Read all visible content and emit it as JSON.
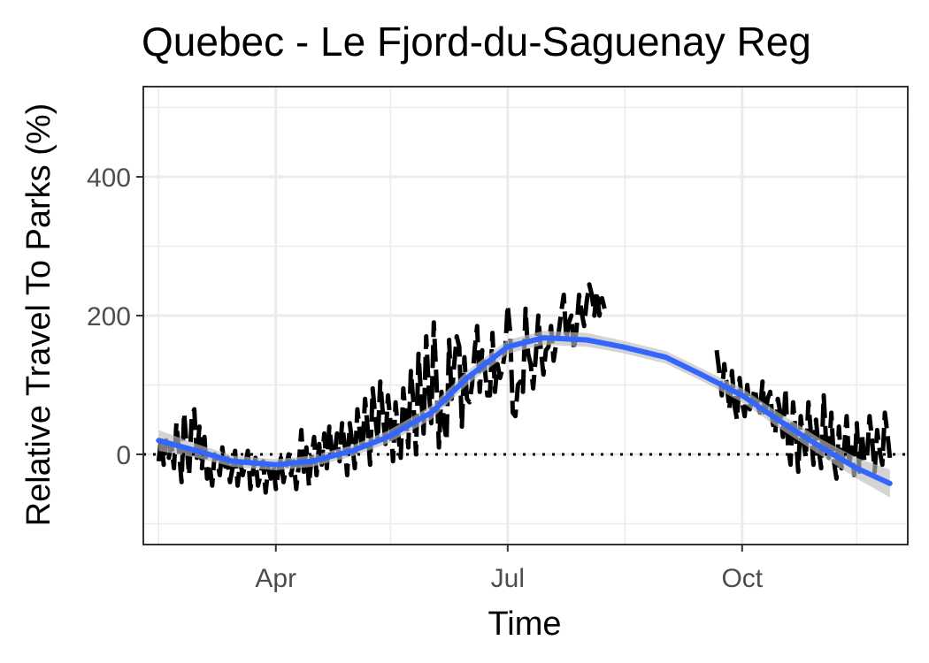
{
  "chart_data": {
    "type": "line",
    "title": "Quebec - Le Fjord-du-Saguenay Reg",
    "xlabel": "Time",
    "ylabel": "Relative Travel To Parks (%)",
    "x_ticks": [
      "Apr",
      "Jul",
      "Oct"
    ],
    "y_ticks": [
      0,
      200,
      400
    ],
    "ylim": [
      -130,
      530
    ],
    "xlim": [
      "2020-02-09",
      "2020-12-05"
    ],
    "grid": true,
    "reference_line": 0,
    "colors": {
      "observed": "#000000",
      "smooth": "#3366ff",
      "confidence_band": "#bdbdbd",
      "grid": "#ebebeb",
      "panel_border": "#333333"
    },
    "series": [
      {
        "type": "observed",
        "x": [
          "2020-02-15",
          "2020-02-16",
          "2020-02-17",
          "2020-02-18",
          "2020-02-19",
          "2020-02-20",
          "2020-02-21",
          "2020-02-22",
          "2020-02-23",
          "2020-02-24",
          "2020-02-25",
          "2020-02-26",
          "2020-02-27",
          "2020-02-28",
          "2020-02-29",
          "2020-03-01",
          "2020-03-02",
          "2020-03-03",
          "2020-03-04",
          "2020-03-05",
          "2020-03-06",
          "2020-03-07",
          "2020-03-08",
          "2020-03-09",
          "2020-03-10",
          "2020-03-11",
          "2020-03-12",
          "2020-03-13",
          "2020-03-14",
          "2020-03-15",
          "2020-03-16",
          "2020-03-17",
          "2020-03-18",
          "2020-03-19",
          "2020-03-20",
          "2020-03-21",
          "2020-03-22",
          "2020-03-23",
          "2020-03-24",
          "2020-03-25",
          "2020-03-26",
          "2020-03-27",
          "2020-03-28",
          "2020-03-29",
          "2020-03-30",
          "2020-03-31",
          "2020-04-01",
          "2020-04-02",
          "2020-04-03",
          "2020-04-04",
          "2020-04-05",
          "2020-04-06",
          "2020-04-07",
          "2020-04-08",
          "2020-04-09",
          "2020-04-10",
          "2020-04-11",
          "2020-04-12",
          "2020-04-13",
          "2020-04-14",
          "2020-04-15",
          "2020-04-16",
          "2020-04-17",
          "2020-04-18",
          "2020-04-19",
          "2020-04-20",
          "2020-04-21",
          "2020-04-22",
          "2020-04-23",
          "2020-04-24",
          "2020-04-25",
          "2020-04-26",
          "2020-04-27",
          "2020-04-28",
          "2020-04-29",
          "2020-04-30",
          "2020-05-01",
          "2020-05-02",
          "2020-05-03",
          "2020-05-04",
          "2020-05-05",
          "2020-05-06",
          "2020-05-07",
          "2020-05-08",
          "2020-05-09",
          "2020-05-10",
          "2020-05-11",
          "2020-05-12",
          "2020-05-13",
          "2020-05-14",
          "2020-05-15",
          "2020-05-16",
          "2020-05-17",
          "2020-05-18",
          "2020-05-19",
          "2020-05-20",
          "2020-05-21",
          "2020-05-22",
          "2020-05-23",
          "2020-05-24",
          "2020-05-25",
          "2020-05-26",
          "2020-05-27",
          "2020-05-28",
          "2020-05-29",
          "2020-05-30",
          "2020-05-31",
          "2020-06-01",
          "2020-06-02",
          "2020-06-03",
          "2020-06-04",
          "2020-06-05",
          "2020-06-06",
          "2020-06-07",
          "2020-06-08",
          "2020-06-09",
          "2020-06-10",
          "2020-06-11",
          "2020-06-12",
          "2020-06-13",
          "2020-06-14",
          "2020-06-15",
          "2020-06-16",
          "2020-06-17",
          "2020-06-18",
          "2020-06-19",
          "2020-06-20",
          "2020-06-21",
          "2020-06-22",
          "2020-06-23",
          "2020-06-24",
          "2020-06-25",
          "2020-06-26",
          "2020-06-27",
          "2020-06-28",
          "2020-06-29",
          "2020-06-30",
          "2020-07-01",
          "2020-07-02",
          "2020-07-03",
          "2020-07-04",
          "2020-07-05",
          "2020-07-06",
          "2020-07-07",
          "2020-07-08",
          "2020-07-09",
          "2020-07-10",
          "2020-07-11",
          "2020-07-12",
          "2020-07-13",
          "2020-07-14",
          "2020-07-15",
          "2020-07-16",
          "2020-07-17",
          "2020-07-18",
          "2020-07-19",
          "2020-07-20",
          "2020-07-21",
          "2020-07-22",
          "2020-07-23",
          "2020-07-24",
          "2020-07-25",
          "2020-07-26",
          "2020-07-27",
          "2020-07-28",
          "2020-07-29",
          "2020-07-30",
          "2020-07-31",
          "2020-08-01",
          "2020-08-02",
          "2020-08-03",
          "2020-08-04",
          "2020-08-05",
          "2020-08-06",
          "2020-08-07",
          "2020-08-08",
          "2020-08-09",
          "2020-08-10",
          "2020-08-11",
          "2020-08-12",
          "2020-08-13",
          "2020-08-14",
          "2020-08-15",
          "2020-08-16",
          "2020-08-17",
          "2020-08-18",
          "2020-08-19",
          "2020-08-20",
          "2020-08-21",
          "2020-08-22",
          "2020-08-23",
          "2020-08-24",
          "2020-08-25",
          "2020-08-26",
          "2020-08-27",
          "2020-08-28",
          "2020-08-29",
          "2020-08-30",
          "2020-08-31",
          "2020-09-01",
          "2020-09-02",
          "2020-09-03",
          "2020-09-04",
          "2020-09-05",
          "2020-09-06",
          "2020-09-07",
          "2020-09-08",
          "2020-09-09",
          "2020-09-10",
          "2020-09-11",
          "2020-09-12",
          "2020-09-13",
          "2020-09-14",
          "2020-09-15",
          "2020-09-16",
          "2020-09-17",
          "2020-09-18",
          "2020-09-19",
          "2020-09-20",
          "2020-09-21",
          "2020-09-22",
          "2020-09-23",
          "2020-09-24",
          "2020-09-25",
          "2020-09-26",
          "2020-09-27",
          "2020-09-28",
          "2020-09-29",
          "2020-09-30",
          "2020-10-01",
          "2020-10-02",
          "2020-10-03",
          "2020-10-04",
          "2020-10-05",
          "2020-10-06",
          "2020-10-07",
          "2020-10-08",
          "2020-10-09",
          "2020-10-10",
          "2020-10-11",
          "2020-10-12",
          "2020-10-13",
          "2020-10-14",
          "2020-10-15",
          "2020-10-16",
          "2020-10-17",
          "2020-10-18",
          "2020-10-19",
          "2020-10-20",
          "2020-10-21",
          "2020-10-22",
          "2020-10-23",
          "2020-10-24",
          "2020-10-25",
          "2020-10-26",
          "2020-10-27",
          "2020-10-28",
          "2020-10-29",
          "2020-10-30",
          "2020-10-31",
          "2020-11-01",
          "2020-11-02",
          "2020-11-03",
          "2020-11-04",
          "2020-11-05",
          "2020-11-06",
          "2020-11-07",
          "2020-11-08",
          "2020-11-09",
          "2020-11-10",
          "2020-11-11",
          "2020-11-12",
          "2020-11-13",
          "2020-11-14",
          "2020-11-15",
          "2020-11-16",
          "2020-11-17",
          "2020-11-18",
          "2020-11-19",
          "2020-11-20",
          "2020-11-21",
          "2020-11-22",
          "2020-11-23",
          "2020-11-24",
          "2020-11-25",
          "2020-11-26",
          "2020-11-27",
          "2020-11-28"
        ],
        "y": [
          -10,
          25,
          -15,
          20,
          -5,
          15,
          -20,
          45,
          5,
          -40,
          60,
          10,
          -30,
          55,
          65,
          -5,
          40,
          -20,
          25,
          -35,
          -15,
          -45,
          0,
          -10,
          -30,
          10,
          -25,
          -5,
          -40,
          -20,
          5,
          -45,
          -10,
          -30,
          -15,
          5,
          -50,
          -25,
          -5,
          -45,
          -30,
          -10,
          -55,
          -20,
          -35,
          -15,
          -50,
          -25,
          -5,
          -40,
          -20,
          0,
          -30,
          -10,
          -50,
          -15,
          35,
          -25,
          10,
          -45,
          -5,
          25,
          -30,
          15,
          -15,
          30,
          -20,
          40,
          5,
          -5,
          30,
          -10,
          45,
          15,
          -30,
          45,
          15,
          -20,
          65,
          30,
          5,
          80,
          40,
          -15,
          95,
          55,
          20,
          105,
          60,
          15,
          85,
          45,
          -10,
          75,
          30,
          -5,
          95,
          55,
          10,
          120,
          75,
          0,
          145,
          85,
          30,
          170,
          95,
          45,
          190,
          110,
          10,
          90,
          45,
          20,
          165,
          80,
          130,
          170,
          155,
          40,
          140,
          80,
          75,
          100,
          150,
          185,
          90,
          150,
          125,
          85,
          85,
          175,
          90,
          130,
          110,
          125,
          150,
          215,
          175,
          60,
          55,
          100,
          105,
          90,
          210,
          145,
          130,
          95,
          140,
          200,
          150,
          115,
          150,
          155,
          185,
          135,
          160,
          175,
          205,
          230,
          165,
          190,
          200,
          150,
          180,
          230,
          205,
          185,
          220,
          245,
          230,
          200,
          235,
          200,
          225,
          210,
          null,
          null,
          null,
          null,
          null,
          null,
          null,
          null,
          null,
          null,
          null,
          null,
          null,
          null,
          null,
          null,
          null,
          null,
          null,
          null,
          null,
          null,
          null,
          null,
          null,
          null,
          null,
          null,
          null,
          null,
          null,
          null,
          null,
          null,
          null,
          null,
          null,
          null,
          null,
          null,
          null,
          null,
          null,
          150,
          120,
          85,
          130,
          100,
          65,
          120,
          70,
          50,
          110,
          75,
          55,
          100,
          65,
          80,
          95,
          70,
          60,
          105,
          55,
          80,
          90,
          45,
          30,
          80,
          60,
          25,
          95,
          15,
          -15,
          75,
          30,
          -25,
          55,
          20,
          -5,
          75,
          30,
          -15,
          50,
          10,
          -20,
          85,
          15,
          -5,
          60,
          -10,
          -35,
          40,
          -20,
          5,
          55,
          -15,
          10,
          -30,
          45,
          -25,
          30,
          -10,
          -5,
          55,
          20,
          -25,
          35,
          5,
          -15,
          60,
          30,
          -5
        ]
      },
      {
        "type": "smooth",
        "x": [
          "2020-02-15",
          "2020-03-01",
          "2020-03-15",
          "2020-04-01",
          "2020-04-15",
          "2020-05-01",
          "2020-05-15",
          "2020-06-01",
          "2020-06-15",
          "2020-07-01",
          "2020-07-15",
          "2020-08-01",
          "2020-08-15",
          "2020-09-01",
          "2020-09-15",
          "2020-10-01",
          "2020-10-15",
          "2020-11-01",
          "2020-11-15",
          "2020-11-28"
        ],
        "y": [
          20,
          5,
          -10,
          -15,
          -10,
          5,
          25,
          60,
          110,
          155,
          168,
          165,
          155,
          140,
          115,
          85,
          50,
          10,
          -20,
          -42
        ],
        "ci_width": [
          15,
          10,
          8,
          8,
          8,
          8,
          9,
          10,
          10,
          10,
          10,
          10,
          9,
          9,
          9,
          10,
          11,
          12,
          15,
          20
        ]
      }
    ]
  }
}
